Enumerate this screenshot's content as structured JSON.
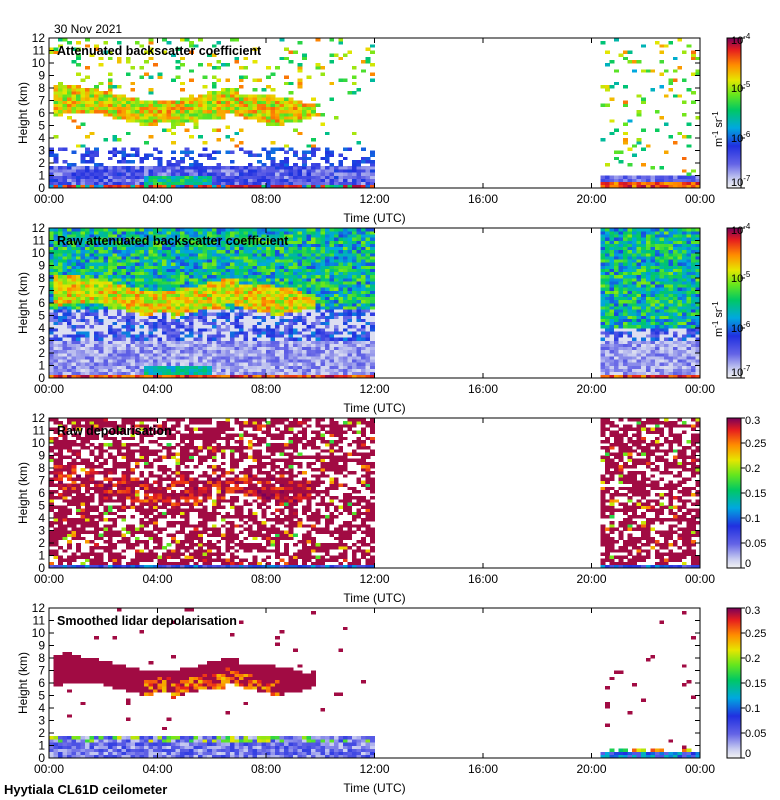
{
  "figure": {
    "date": "30 Nov 2021",
    "footer": "Hyytiala CL61D ceilometer",
    "xlabel": "Time (UTC)",
    "ylabel": "Height (km)",
    "xticks": [
      "00:00",
      "04:00",
      "08:00",
      "12:00",
      "16:00",
      "20:00",
      "00:00"
    ],
    "yticks": [
      "0",
      "1",
      "2",
      "3",
      "4",
      "5",
      "6",
      "7",
      "8",
      "9",
      "10",
      "11",
      "12"
    ]
  },
  "chart_data": [
    {
      "type": "heatmap",
      "title": "Attenuated backscatter coefficient",
      "xlabel": "Time (UTC)",
      "ylabel": "Height (km)",
      "xlim_hours": [
        0,
        24
      ],
      "ylim_km": [
        0,
        12
      ],
      "data_gap_hours": [
        12.0,
        20.3
      ],
      "colorbar": {
        "scale": "log",
        "range": [
          1e-07,
          0.0001
        ],
        "unit": "m-1 sr-1",
        "ticks": [
          "10-4",
          "10-5",
          "10-6",
          "10-7"
        ]
      },
      "features": [
        {
          "name": "mid-level cloud",
          "t_start": 0.2,
          "t_end": 9.8,
          "base_km": 5.5,
          "top_km": 8.0,
          "level": "high"
        },
        {
          "name": "boundary layer",
          "t_start": 0,
          "t_end": 12.0,
          "base_km": 0,
          "top_km": 1.8,
          "level": "low"
        },
        {
          "name": "near-surface layer",
          "t_start": 20.3,
          "t_end": 24,
          "base_km": 0,
          "top_km": 0.5,
          "level": "high"
        }
      ]
    },
    {
      "type": "heatmap",
      "title": "Raw attenuated backscatter coefficient",
      "xlabel": "Time (UTC)",
      "ylabel": "Height (km)",
      "xlim_hours": [
        0,
        24
      ],
      "ylim_km": [
        0,
        12
      ],
      "data_gap_hours": [
        12.0,
        20.3
      ],
      "colorbar": {
        "scale": "log",
        "range": [
          1e-07,
          0.0001
        ],
        "unit": "m-1 sr-1",
        "ticks": [
          "10-4",
          "10-5",
          "10-6",
          "10-7"
        ]
      },
      "features": [
        {
          "name": "mid-level cloud",
          "t_start": 0.2,
          "t_end": 9.8,
          "base_km": 5.5,
          "top_km": 8.0,
          "level": "high"
        },
        {
          "name": "noise background",
          "t_start": 0,
          "t_end": 24,
          "base_km": 0,
          "top_km": 12,
          "level": "mid"
        }
      ]
    },
    {
      "type": "heatmap",
      "title": "Raw depolarisation",
      "xlabel": "Time (UTC)",
      "ylabel": "Height (km)",
      "xlim_hours": [
        0,
        24
      ],
      "ylim_km": [
        0,
        12
      ],
      "data_gap_hours": [
        12.0,
        20.3
      ],
      "colorbar": {
        "scale": "linear",
        "range": [
          0,
          0.3
        ],
        "ticks": [
          "0.3",
          "0.25",
          "0.2",
          "0.15",
          "0.1",
          "0.05",
          "0"
        ]
      }
    },
    {
      "type": "heatmap",
      "title": "Smoothed lidar depolarisation",
      "xlabel": "Time (UTC)",
      "ylabel": "Height (km)",
      "xlim_hours": [
        0,
        24
      ],
      "ylim_km": [
        0,
        12
      ],
      "data_gap_hours": [
        12.0,
        20.3
      ],
      "colorbar": {
        "scale": "linear",
        "range": [
          0,
          0.3
        ],
        "ticks": [
          "0.3",
          "0.25",
          "0.2",
          "0.15",
          "0.1",
          "0.05",
          "0"
        ]
      },
      "features": [
        {
          "name": "mid-level cloud",
          "t_start": 0.2,
          "t_end": 9.8,
          "base_km": 5.0,
          "top_km": 8.2,
          "level": "mixed"
        },
        {
          "name": "boundary layer",
          "t_start": 0,
          "t_end": 12.0,
          "base_km": 0,
          "top_km": 1.8,
          "level": "low"
        }
      ]
    }
  ]
}
